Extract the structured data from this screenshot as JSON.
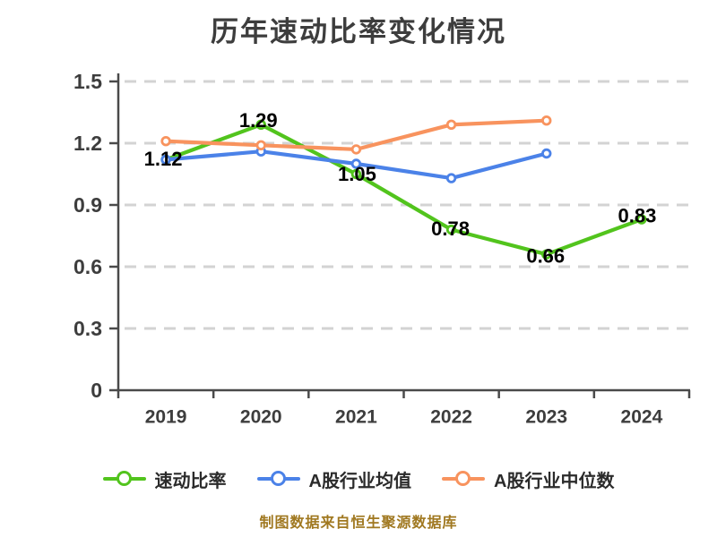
{
  "footer": "制图数据来自恒生聚源数据库",
  "chart_data": {
    "type": "line",
    "title": "历年速动比率变化情况",
    "x_categories": [
      "2019",
      "2020",
      "2021",
      "2022",
      "2023",
      "2024"
    ],
    "y_tick_labels": [
      "0",
      "0.3",
      "0.6",
      "0.9",
      "1.2",
      "1.5"
    ],
    "ylim": [
      0,
      1.5
    ],
    "xlabel": "",
    "ylabel": "",
    "grid": "horizontal-dashed",
    "legend_position": "bottom",
    "series": [
      {
        "name": "速动比率",
        "color": "#52c41d",
        "values": [
          1.12,
          1.29,
          1.05,
          0.78,
          0.66,
          0.83
        ],
        "point_labels": [
          "1.12",
          "1.29",
          "1.05",
          "0.78",
          "0.66",
          "0.83"
        ],
        "label_dx": [
          -3,
          -3,
          1,
          -1,
          -1,
          -5
        ],
        "label_dy": [
          -1,
          -5,
          0,
          -1,
          2,
          -4
        ]
      },
      {
        "name": "A股行业均值",
        "color": "#4b82e8",
        "values": [
          1.12,
          1.16,
          1.1,
          1.03,
          1.15,
          null
        ]
      },
      {
        "name": "A股行业中位数",
        "color": "#f8935e",
        "values": [
          1.21,
          1.19,
          1.17,
          1.29,
          1.31,
          null
        ]
      }
    ],
    "colors": {
      "grid": "#d3d3d3",
      "axis": "#4a4a4a",
      "tick_text": "#3d3d3d",
      "data_label": "#000000",
      "title_text": "#3d3d3d",
      "legend_text": "#2b2b2b",
      "footer_text": "#a07820",
      "background": "#ffffff"
    }
  }
}
